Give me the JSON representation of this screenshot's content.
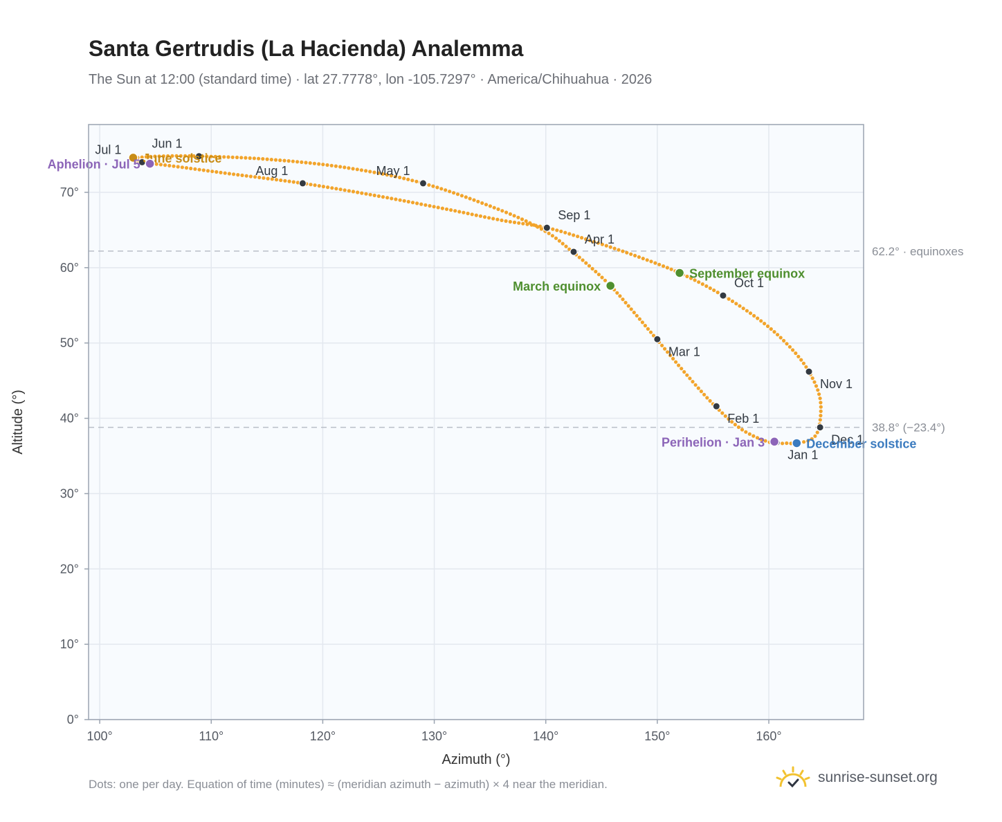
{
  "header": {
    "title": "Santa Gertrudis (La Hacienda) Analemma",
    "subtitle": "The Sun at 12:00 (standard time) · lat 27.7778°, lon -105.7297° · America/Chihuahua · 2026"
  },
  "footer": {
    "note": "Dots: one per day. Equation of time (minutes) ≈ (meridian azimuth − azimuth) × 4 near the meridian.",
    "brand": "sunrise-sunset.org"
  },
  "colors": {
    "curve": "#f2a42b",
    "month_dot": "#333a42",
    "solstice_june": "#c88c16",
    "solstice_dec": "#3b7bbf",
    "equinox": "#4f8f2f",
    "apsis": "#8c65b8",
    "reference_line": "#b9bec7",
    "plot_bg": "#f8fbfe",
    "grid": "#e3e8ef"
  },
  "chart_data": {
    "type": "scatter",
    "xlabel": "Azimuth (°)",
    "ylabel": "Altitude (°)",
    "xlim": [
      99,
      168.5
    ],
    "ylim": [
      0,
      79
    ],
    "x_ticks": [
      100,
      110,
      120,
      130,
      140,
      150,
      160
    ],
    "x_tick_labels": [
      "100°",
      "110°",
      "120°",
      "130°",
      "140°",
      "150°",
      "160°"
    ],
    "y_ticks": [
      0,
      10,
      20,
      30,
      40,
      50,
      60,
      70
    ],
    "y_tick_labels": [
      "0°",
      "10°",
      "20°",
      "30°",
      "40°",
      "50°",
      "60°",
      "70°"
    ],
    "grid": true,
    "reference_lines": [
      {
        "y": 62.2,
        "label": "62.2° · equinoxes"
      },
      {
        "y": 38.8,
        "label": "38.8° (−23.4°)"
      }
    ],
    "analemma_path": [
      {
        "x": 161.6,
        "y": 36.7
      },
      {
        "x": 160.1,
        "y": 36.8
      },
      {
        "x": 157.6,
        "y": 38.5
      },
      {
        "x": 155.2,
        "y": 41.6
      },
      {
        "x": 152.8,
        "y": 45.5
      },
      {
        "x": 150.0,
        "y": 50.4
      },
      {
        "x": 147.6,
        "y": 54.6
      },
      {
        "x": 145.8,
        "y": 57.6
      },
      {
        "x": 144.0,
        "y": 60.1
      },
      {
        "x": 142.4,
        "y": 62.1
      },
      {
        "x": 140.0,
        "y": 64.8
      },
      {
        "x": 136.0,
        "y": 67.6
      },
      {
        "x": 129.0,
        "y": 71.2
      },
      {
        "x": 122.0,
        "y": 73.3
      },
      {
        "x": 115.0,
        "y": 74.4
      },
      {
        "x": 108.9,
        "y": 74.8
      },
      {
        "x": 105.5,
        "y": 74.8
      },
      {
        "x": 103.3,
        "y": 74.6
      },
      {
        "x": 103.0,
        "y": 74.4
      },
      {
        "x": 103.7,
        "y": 74.0
      },
      {
        "x": 106.5,
        "y": 73.5
      },
      {
        "x": 111.5,
        "y": 72.5
      },
      {
        "x": 118.2,
        "y": 71.2
      },
      {
        "x": 125.0,
        "y": 69.5
      },
      {
        "x": 131.0,
        "y": 67.8
      },
      {
        "x": 136.0,
        "y": 66.3
      },
      {
        "x": 140.1,
        "y": 65.3
      },
      {
        "x": 144.0,
        "y": 63.6
      },
      {
        "x": 148.0,
        "y": 61.6
      },
      {
        "x": 152.0,
        "y": 59.3
      },
      {
        "x": 155.9,
        "y": 56.3
      },
      {
        "x": 159.5,
        "y": 52.7
      },
      {
        "x": 162.0,
        "y": 49.3
      },
      {
        "x": 163.6,
        "y": 46.2
      },
      {
        "x": 164.6,
        "y": 42.6
      },
      {
        "x": 164.5,
        "y": 38.8
      },
      {
        "x": 163.8,
        "y": 37.2
      },
      {
        "x": 162.4,
        "y": 36.7
      },
      {
        "x": 161.6,
        "y": 36.7
      }
    ],
    "month_markers": [
      {
        "label": "Jan 1",
        "x": 160.7,
        "y": 36.8,
        "anchor": "below-right"
      },
      {
        "label": "Feb 1",
        "x": 155.3,
        "y": 41.6,
        "anchor": "below-right"
      },
      {
        "label": "Mar 1",
        "x": 150.0,
        "y": 50.5,
        "anchor": "below-right"
      },
      {
        "label": "Apr 1",
        "x": 142.5,
        "y": 62.1,
        "anchor": "above-right"
      },
      {
        "label": "May 1",
        "x": 129.0,
        "y": 71.2,
        "anchor": "above-left"
      },
      {
        "label": "Jun 1",
        "x": 108.9,
        "y": 74.8,
        "anchor": "above-left"
      },
      {
        "label": "Jul 1",
        "x": 103.8,
        "y": 74.0,
        "anchor": "above-left"
      },
      {
        "label": "Aug 1",
        "x": 118.2,
        "y": 71.2,
        "anchor": "above-left"
      },
      {
        "label": "Sep 1",
        "x": 140.1,
        "y": 65.3,
        "anchor": "above-right"
      },
      {
        "label": "Oct 1",
        "x": 155.9,
        "y": 56.3,
        "anchor": "above-right"
      },
      {
        "label": "Nov 1",
        "x": 163.6,
        "y": 46.2,
        "anchor": "below-right"
      },
      {
        "label": "Dec 1",
        "x": 164.6,
        "y": 38.8,
        "anchor": "below-right"
      }
    ],
    "events": [
      {
        "label": "June solstice",
        "x": 103.0,
        "y": 74.6,
        "color": "#c88c16",
        "anchor": "right"
      },
      {
        "label": "December solstice",
        "x": 162.5,
        "y": 36.7,
        "color": "#3b7bbf",
        "anchor": "right"
      },
      {
        "label": "March equinox",
        "x": 145.8,
        "y": 57.6,
        "color": "#4f8f2f",
        "anchor": "left"
      },
      {
        "label": "September equinox",
        "x": 152.0,
        "y": 59.3,
        "color": "#4f8f2f",
        "anchor": "right"
      },
      {
        "label": "Aphelion · Jul 5",
        "x": 104.5,
        "y": 73.8,
        "color": "#8c65b8",
        "anchor": "left"
      },
      {
        "label": "Perihelion · Jan 3",
        "x": 160.5,
        "y": 36.9,
        "color": "#8c65b8",
        "anchor": "left"
      }
    ]
  }
}
